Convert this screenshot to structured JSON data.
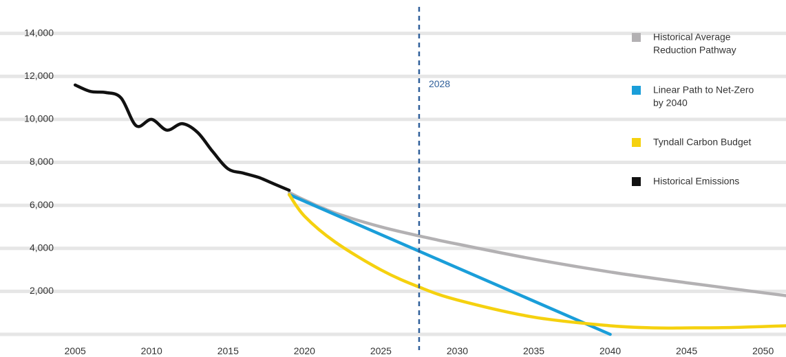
{
  "chart_data": {
    "type": "line",
    "title": "",
    "xlabel": "",
    "ylabel": "",
    "xlim": [
      2004,
      2051.5
    ],
    "ylim": [
      0,
      14500
    ],
    "grid": true,
    "legend_position": "right",
    "x_ticks": [
      "2005",
      "2010",
      "2015",
      "2020",
      "2025",
      "2030",
      "2035",
      "2040",
      "2045",
      "2050"
    ],
    "y_ticks": [
      "2,000",
      "4,000",
      "6,000",
      "8,000",
      "10,000",
      "12,000",
      "14,000"
    ],
    "x_tick_values": [
      2005,
      2010,
      2015,
      2020,
      2025,
      2030,
      2035,
      2040,
      2045,
      2050
    ],
    "y_tick_values": [
      2000,
      4000,
      6000,
      8000,
      10000,
      12000,
      14000
    ],
    "annotation": {
      "x": 2027.5,
      "label": "2028"
    },
    "series": [
      {
        "name": "Historical Average Reduction Pathway",
        "color": "#b3b1b3",
        "points": [
          [
            2019,
            6600
          ],
          [
            2020,
            6250
          ],
          [
            2022,
            5650
          ],
          [
            2025,
            5000
          ],
          [
            2028,
            4500
          ],
          [
            2030,
            4200
          ],
          [
            2035,
            3500
          ],
          [
            2040,
            2900
          ],
          [
            2045,
            2400
          ],
          [
            2051.5,
            1800
          ]
        ]
      },
      {
        "name": "Linear Path to Net-Zero by 2040",
        "color": "#1a9ed9",
        "points": [
          [
            2019,
            6500
          ],
          [
            2040,
            0
          ]
        ]
      },
      {
        "name": "Tyndall Carbon Budget",
        "color": "#f5d10f",
        "points": [
          [
            2019,
            6500
          ],
          [
            2020,
            5500
          ],
          [
            2022,
            4300
          ],
          [
            2025,
            3000
          ],
          [
            2027.5,
            2200
          ],
          [
            2030,
            1600
          ],
          [
            2035,
            800
          ],
          [
            2040,
            400
          ],
          [
            2043,
            300
          ],
          [
            2045,
            300
          ],
          [
            2048,
            320
          ],
          [
            2051.5,
            400
          ]
        ]
      },
      {
        "name": "Historical Emissions",
        "color": "#111111",
        "points": [
          [
            2005,
            11600
          ],
          [
            2006,
            11300
          ],
          [
            2007,
            11250
          ],
          [
            2008,
            11000
          ],
          [
            2009,
            9700
          ],
          [
            2010,
            10000
          ],
          [
            2011,
            9500
          ],
          [
            2012,
            9800
          ],
          [
            2013,
            9400
          ],
          [
            2014,
            8500
          ],
          [
            2015,
            7700
          ],
          [
            2016,
            7500
          ],
          [
            2017,
            7300
          ],
          [
            2018,
            7000
          ],
          [
            2019,
            6700
          ]
        ]
      }
    ]
  },
  "legend": {
    "items": [
      {
        "label_lines": [
          "Historical Average",
          "Reduction Pathway"
        ],
        "color": "#b3b1b3"
      },
      {
        "label_lines": [
          "Linear Path to Net-Zero",
          "by 2040"
        ],
        "color": "#1a9ed9"
      },
      {
        "label_lines": [
          "Tyndall Carbon Budget"
        ],
        "color": "#f5d10f"
      },
      {
        "label_lines": [
          "Historical Emissions"
        ],
        "color": "#111111"
      }
    ]
  }
}
